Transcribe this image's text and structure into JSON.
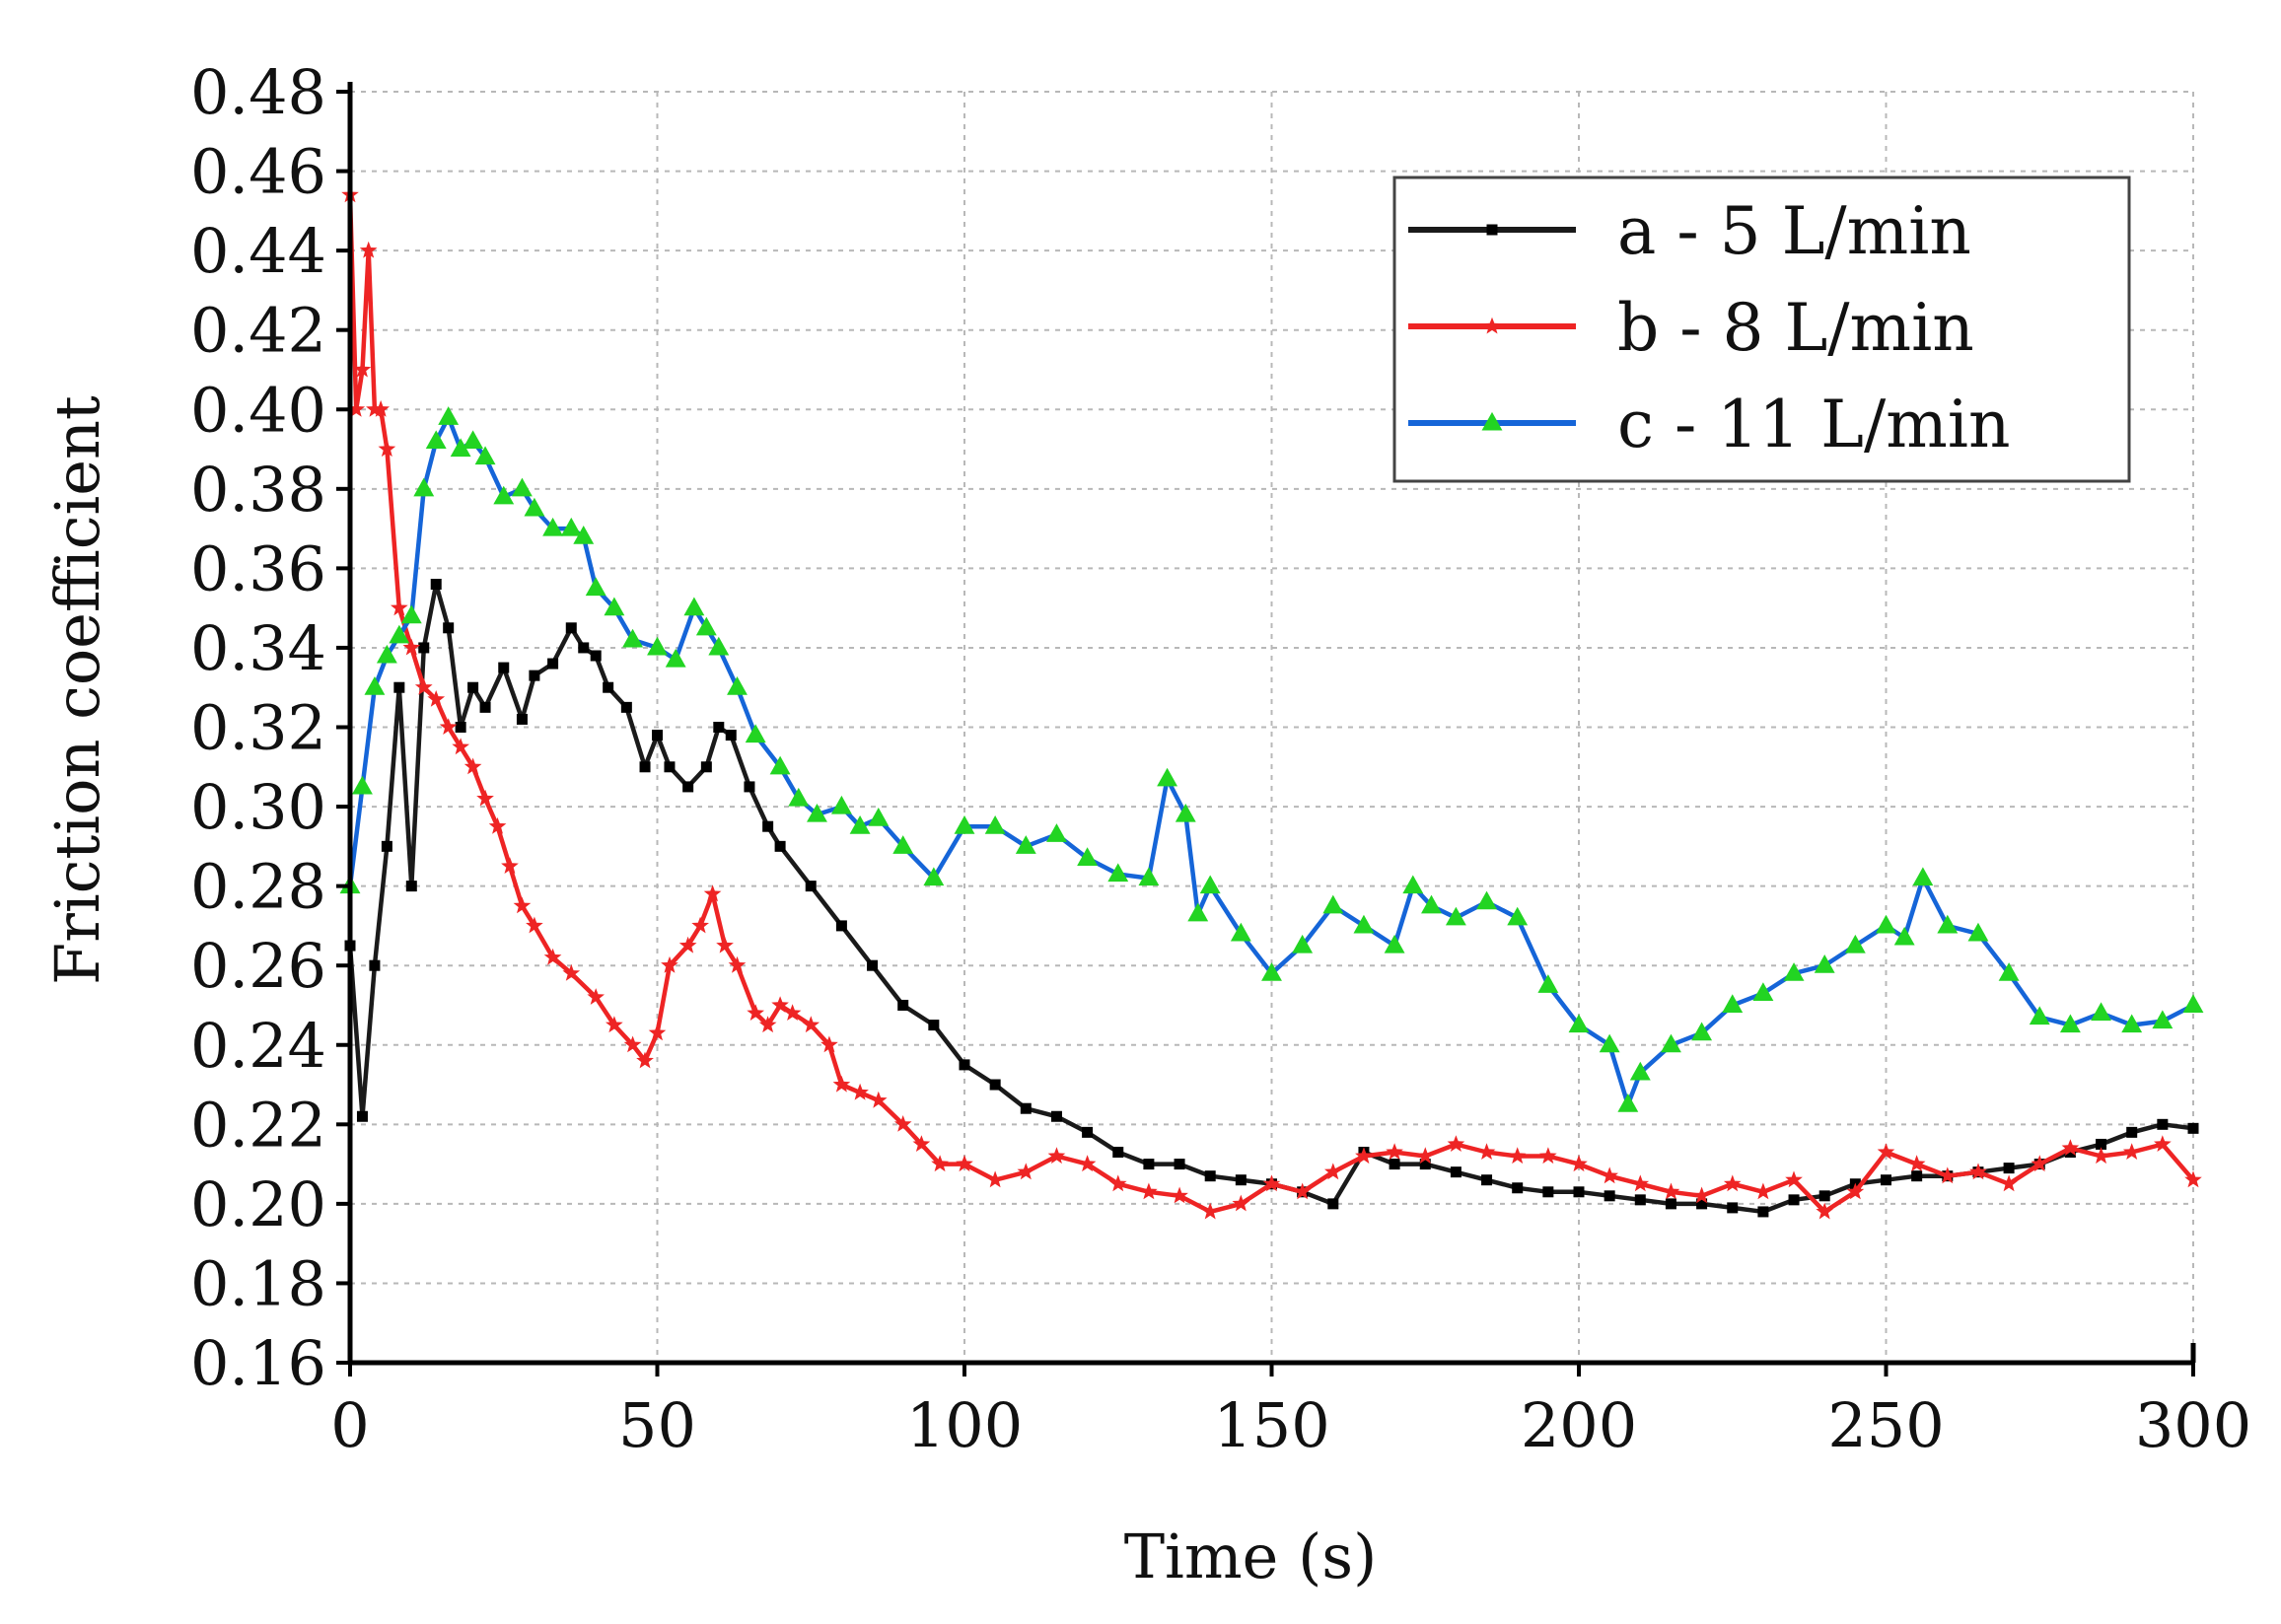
{
  "chart_data": {
    "type": "line",
    "xlabel": "Time (s)",
    "ylabel": "Friction coefficient",
    "xlim": [
      0,
      300
    ],
    "ylim": [
      0.16,
      0.48
    ],
    "x_ticks": [
      "0",
      "50",
      "100",
      "150",
      "200",
      "250",
      "300"
    ],
    "y_ticks": [
      "0.16",
      "0.18",
      "0.20",
      "0.22",
      "0.24",
      "0.26",
      "0.28",
      "0.30",
      "0.32",
      "0.34",
      "0.36",
      "0.38",
      "0.40",
      "0.42",
      "0.44",
      "0.46",
      "0.48"
    ],
    "grid": true,
    "legend_position": "top-right",
    "series": [
      {
        "name": "a - 5 L/min",
        "color": "#1a1a1a",
        "marker_color": "#000000",
        "marker": "square",
        "x": [
          0,
          2,
          4,
          6,
          8,
          10,
          12,
          14,
          16,
          18,
          20,
          22,
          25,
          28,
          30,
          33,
          36,
          38,
          40,
          42,
          45,
          48,
          50,
          52,
          55,
          58,
          60,
          62,
          65,
          68,
          70,
          75,
          80,
          85,
          90,
          95,
          100,
          105,
          110,
          115,
          120,
          125,
          130,
          135,
          140,
          145,
          150,
          155,
          160,
          165,
          170,
          175,
          180,
          185,
          190,
          195,
          200,
          205,
          210,
          215,
          220,
          225,
          230,
          235,
          240,
          245,
          250,
          255,
          260,
          265,
          270,
          275,
          280,
          285,
          290,
          295,
          300
        ],
        "y": [
          0.265,
          0.222,
          0.26,
          0.29,
          0.33,
          0.28,
          0.34,
          0.356,
          0.345,
          0.32,
          0.33,
          0.325,
          0.335,
          0.322,
          0.333,
          0.336,
          0.345,
          0.34,
          0.338,
          0.33,
          0.325,
          0.31,
          0.318,
          0.31,
          0.305,
          0.31,
          0.32,
          0.318,
          0.305,
          0.295,
          0.29,
          0.28,
          0.27,
          0.26,
          0.25,
          0.245,
          0.235,
          0.23,
          0.224,
          0.222,
          0.218,
          0.213,
          0.21,
          0.21,
          0.207,
          0.206,
          0.205,
          0.203,
          0.2,
          0.213,
          0.21,
          0.21,
          0.208,
          0.206,
          0.204,
          0.203,
          0.203,
          0.202,
          0.201,
          0.2,
          0.2,
          0.199,
          0.198,
          0.201,
          0.202,
          0.205,
          0.206,
          0.207,
          0.207,
          0.208,
          0.209,
          0.21,
          0.213,
          0.215,
          0.218,
          0.22,
          0.219
        ]
      },
      {
        "name": "b - 8 L/min",
        "color": "#ee2424",
        "marker_color": "#ee2424",
        "marker": "star",
        "x": [
          0,
          1,
          2,
          3,
          4,
          5,
          6,
          8,
          10,
          12,
          14,
          16,
          18,
          20,
          22,
          24,
          26,
          28,
          30,
          33,
          36,
          40,
          43,
          46,
          48,
          50,
          52,
          55,
          57,
          59,
          61,
          63,
          66,
          68,
          70,
          72,
          75,
          78,
          80,
          83,
          86,
          90,
          93,
          96,
          100,
          105,
          110,
          115,
          120,
          125,
          130,
          135,
          140,
          145,
          150,
          155,
          160,
          165,
          170,
          175,
          180,
          185,
          190,
          195,
          200,
          205,
          210,
          215,
          220,
          225,
          230,
          235,
          240,
          245,
          250,
          255,
          260,
          265,
          270,
          275,
          280,
          285,
          290,
          295,
          300
        ],
        "y": [
          0.454,
          0.4,
          0.41,
          0.44,
          0.4,
          0.4,
          0.39,
          0.35,
          0.34,
          0.33,
          0.327,
          0.32,
          0.315,
          0.31,
          0.302,
          0.295,
          0.285,
          0.275,
          0.27,
          0.262,
          0.258,
          0.252,
          0.245,
          0.24,
          0.236,
          0.243,
          0.26,
          0.265,
          0.27,
          0.278,
          0.265,
          0.26,
          0.248,
          0.245,
          0.25,
          0.248,
          0.245,
          0.24,
          0.23,
          0.228,
          0.226,
          0.22,
          0.215,
          0.21,
          0.21,
          0.206,
          0.208,
          0.212,
          0.21,
          0.205,
          0.203,
          0.202,
          0.198,
          0.2,
          0.205,
          0.203,
          0.208,
          0.212,
          0.213,
          0.212,
          0.215,
          0.213,
          0.212,
          0.212,
          0.21,
          0.207,
          0.205,
          0.203,
          0.202,
          0.205,
          0.203,
          0.206,
          0.198,
          0.203,
          0.213,
          0.21,
          0.207,
          0.208,
          0.205,
          0.21,
          0.214,
          0.212,
          0.213,
          0.215,
          0.206
        ]
      },
      {
        "name": "c - 11 L/min",
        "color": "#1565d8",
        "marker_color": "#22d422",
        "marker": "triangle",
        "x": [
          0,
          2,
          4,
          6,
          8,
          10,
          12,
          14,
          16,
          18,
          20,
          22,
          25,
          28,
          30,
          33,
          36,
          38,
          40,
          43,
          46,
          50,
          53,
          56,
          58,
          60,
          63,
          66,
          70,
          73,
          76,
          80,
          83,
          86,
          90,
          95,
          100,
          105,
          110,
          115,
          120,
          125,
          130,
          133,
          136,
          138,
          140,
          145,
          150,
          155,
          160,
          165,
          170,
          173,
          176,
          180,
          185,
          190,
          195,
          200,
          205,
          208,
          210,
          215,
          220,
          225,
          230,
          235,
          240,
          245,
          250,
          253,
          256,
          260,
          265,
          270,
          275,
          280,
          285,
          290,
          295,
          300
        ],
        "y": [
          0.28,
          0.305,
          0.33,
          0.338,
          0.343,
          0.348,
          0.38,
          0.392,
          0.398,
          0.39,
          0.392,
          0.388,
          0.378,
          0.38,
          0.375,
          0.37,
          0.37,
          0.368,
          0.355,
          0.35,
          0.342,
          0.34,
          0.337,
          0.35,
          0.345,
          0.34,
          0.33,
          0.318,
          0.31,
          0.302,
          0.298,
          0.3,
          0.295,
          0.297,
          0.29,
          0.282,
          0.295,
          0.295,
          0.29,
          0.293,
          0.287,
          0.283,
          0.282,
          0.307,
          0.298,
          0.273,
          0.28,
          0.268,
          0.258,
          0.265,
          0.275,
          0.27,
          0.265,
          0.28,
          0.275,
          0.272,
          0.276,
          0.272,
          0.255,
          0.245,
          0.24,
          0.225,
          0.233,
          0.24,
          0.243,
          0.25,
          0.253,
          0.258,
          0.26,
          0.265,
          0.27,
          0.267,
          0.282,
          0.27,
          0.268,
          0.258,
          0.247,
          0.245,
          0.248,
          0.245,
          0.246,
          0.25
        ]
      }
    ]
  }
}
